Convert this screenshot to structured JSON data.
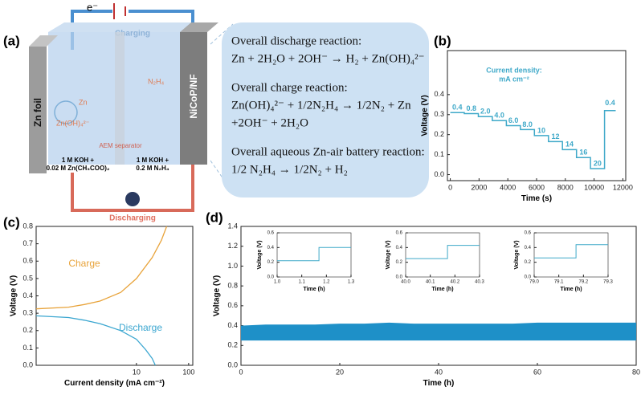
{
  "panel_labels": [
    "(a)",
    "(b)",
    "(c)",
    "(d)"
  ],
  "diagram": {
    "electron": "e⁻",
    "charging": "Charging",
    "discharging": "Discharging",
    "zn_foil": "Zn foil",
    "cathode": "NiCoP/NF",
    "zn": "Zn",
    "zincate": "Zn(OH)₄²⁻",
    "hydrazine": "N₂H₄",
    "separator": "AEM separator",
    "left_electrolyte": [
      "1 M KOH +",
      "0.02 M Zn(CH₃COO)₂"
    ],
    "right_electrolyte": [
      "1 M KOH +",
      "0.2 M N₂H₄"
    ],
    "reactions": [
      {
        "title": "Overall discharge reaction:",
        "equation": [
          "Zn + 2H₂O + 2OH⁻ → H₂ + Zn(OH)₄²⁻"
        ]
      },
      {
        "title": "Overall charge reaction:",
        "equation": [
          "Zn(OH)₄²⁻ + 1/2N₂H₄ → 1/2N₂ + Zn",
          "+2OH⁻ + 2H₂O"
        ]
      },
      {
        "title": "Overall aqueous Zn-air battery reaction:",
        "equation": [
          "1/2 N₂H₄ → 1/2N₂ + H₂"
        ]
      }
    ]
  },
  "chart_data": [
    {
      "type": "line",
      "xlabel": "Time (s)",
      "ylabel": "Voltage (V)",
      "annotation": [
        "Current density:",
        "mA cm⁻²"
      ],
      "step_labels": [
        "0.4",
        "0.8",
        "2.0",
        "4.0",
        "6.0",
        "8.0",
        "10",
        "12",
        "14",
        "16",
        "20",
        "0.4"
      ],
      "xlim": [
        -200,
        12200
      ],
      "xticks": [
        0,
        2000,
        4000,
        6000,
        8000,
        10000,
        12000
      ],
      "ylim": [
        -0.03,
        0.62
      ],
      "yticks": [
        {
          "value": 0,
          "label": "0.0"
        },
        0.1,
        0.2,
        0.3,
        0.4
      ],
      "series": [
        {
          "color": "#3fa9c9",
          "x": [
            0,
            975,
            975,
            1950,
            1950,
            2925,
            2925,
            3900,
            3900,
            4875,
            4875,
            5850,
            5850,
            6825,
            6825,
            7800,
            7800,
            8775,
            8775,
            9750,
            9750,
            10725,
            10725,
            11500
          ],
          "values": [
            0.31,
            0.31,
            0.305,
            0.305,
            0.29,
            0.29,
            0.27,
            0.27,
            0.245,
            0.245,
            0.225,
            0.225,
            0.195,
            0.195,
            0.165,
            0.165,
            0.125,
            0.125,
            0.085,
            0.085,
            0.03,
            0.03,
            0.32,
            0.32
          ]
        }
      ]
    },
    {
      "type": "line",
      "xlabel": "Current density (mA cm⁻²)",
      "ylabel": "Voltage (V)",
      "xscale": "log",
      "xlim": [
        0.12,
        120
      ],
      "xticks": [
        10,
        100
      ],
      "ylim": [
        0,
        0.8
      ],
      "yticks": [
        {
          "value": 0,
          "label": "0.0"
        },
        0.1,
        0.2,
        0.3,
        0.4,
        0.5,
        0.6,
        0.7,
        0.8
      ],
      "series": [
        {
          "name": "Charge",
          "color": "#e8a33a",
          "x": [
            0.12,
            0.5,
            1,
            2,
            5,
            10,
            20,
            30,
            38
          ],
          "values": [
            0.325,
            0.335,
            0.35,
            0.37,
            0.42,
            0.5,
            0.62,
            0.72,
            0.8
          ]
        },
        {
          "name": "Discharge",
          "color": "#3aa6d0",
          "x": [
            0.12,
            0.5,
            1,
            2,
            5,
            10,
            15,
            20,
            23
          ],
          "values": [
            0.285,
            0.275,
            0.26,
            0.24,
            0.2,
            0.15,
            0.09,
            0.04,
            0
          ]
        }
      ]
    },
    {
      "type": "band",
      "xlabel": "Time (h)",
      "ylabel": "Voltage (V)",
      "xlim": [
        0,
        80
      ],
      "xticks": [
        0,
        20,
        40,
        60,
        80
      ],
      "ylim": [
        0,
        1.4
      ],
      "yticks": [
        {
          "value": 0,
          "label": "0.0"
        },
        0.2,
        0.4,
        0.6,
        0.8,
        {
          "value": 1,
          "label": "1.0"
        },
        1.2,
        1.4
      ],
      "x": [
        0,
        5,
        10,
        15,
        20,
        25,
        30,
        35,
        40,
        45,
        50,
        55,
        60,
        65,
        70,
        75,
        80
      ],
      "color": "#1e90c8",
      "upper": [
        0.4,
        0.41,
        0.41,
        0.41,
        0.42,
        0.42,
        0.43,
        0.42,
        0.42,
        0.42,
        0.42,
        0.42,
        0.43,
        0.43,
        0.43,
        0.43,
        0.43
      ],
      "lower": [
        0.25,
        0.25,
        0.25,
        0.25,
        0.25,
        0.25,
        0.25,
        0.25,
        0.25,
        0.25,
        0.25,
        0.25,
        0.25,
        0.25,
        0.25,
        0.25,
        0.25
      ]
    },
    {
      "type": "line",
      "xlabel": "Time (h)",
      "ylabel": "Voltage (V)",
      "xlim": [
        1.0,
        1.3
      ],
      "xticks": [
        {
          "value": 1,
          "label": "1.0"
        },
        1.1,
        1.2,
        1.3
      ],
      "ylim": [
        0,
        0.6
      ],
      "yticks": [
        {
          "value": 0,
          "label": "0.0"
        },
        0.2,
        0.4,
        0.6
      ],
      "series": [
        {
          "color": "#3fa9c9",
          "x": [
            1.0,
            1.17,
            1.17,
            1.3
          ],
          "values": [
            0.22,
            0.22,
            0.4,
            0.4
          ]
        }
      ]
    },
    {
      "type": "line",
      "xlabel": "Time (h)",
      "ylabel": "Voltage (V)",
      "xlim": [
        40.0,
        40.3
      ],
      "xticks": [
        {
          "value": 40,
          "label": "40.0"
        },
        40.1,
        40.2,
        40.3
      ],
      "ylim": [
        0,
        0.6
      ],
      "yticks": [
        {
          "value": 0,
          "label": "0.0"
        },
        0.2,
        0.4,
        0.6
      ],
      "series": [
        {
          "color": "#3fa9c9",
          "x": [
            40.0,
            40.17,
            40.17,
            40.3
          ],
          "values": [
            0.25,
            0.25,
            0.43,
            0.43
          ]
        }
      ]
    },
    {
      "type": "line",
      "xlabel": "Time (h)",
      "ylabel": "Voltage (V)",
      "xlim": [
        79.0,
        79.3
      ],
      "xticks": [
        {
          "value": 79,
          "label": "79.0"
        },
        79.1,
        79.2,
        79.3
      ],
      "ylim": [
        0,
        0.6
      ],
      "yticks": [
        {
          "value": 0,
          "label": "0.0"
        },
        0.2,
        0.4,
        0.6
      ],
      "series": [
        {
          "color": "#3fa9c9",
          "x": [
            79.0,
            79.17,
            79.17,
            79.3
          ],
          "values": [
            0.26,
            0.26,
            0.44,
            0.44
          ]
        }
      ]
    }
  ]
}
